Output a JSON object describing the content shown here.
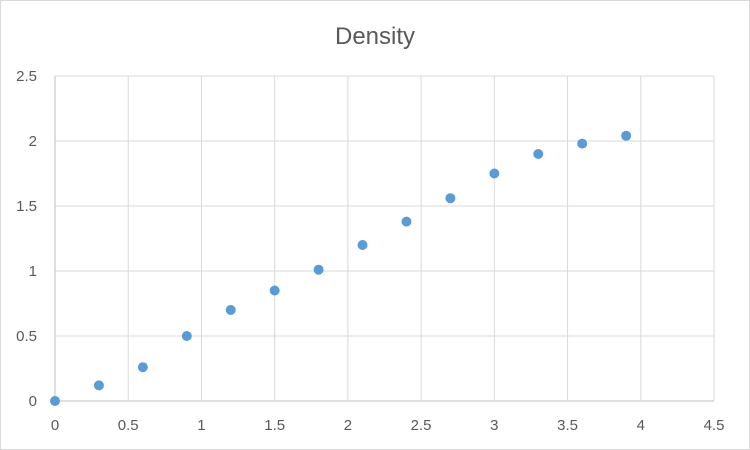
{
  "chart_data": {
    "type": "scatter",
    "title": "Density",
    "xlabel": "",
    "ylabel": "",
    "xlim": [
      0,
      4.5
    ],
    "ylim": [
      0,
      2.5
    ],
    "x_ticks": [
      "0",
      "0.5",
      "1",
      "1.5",
      "2",
      "2.5",
      "3",
      "3.5",
      "4",
      "4.5"
    ],
    "y_ticks": [
      "0",
      "0.5",
      "1",
      "1.5",
      "2",
      "2.5"
    ],
    "grid": true,
    "legend": "none",
    "marker_color": "#5b9bd5",
    "series": [
      {
        "x": [
          0,
          0.3,
          0.6,
          0.9,
          1.2,
          1.5,
          1.8,
          2.1,
          2.4,
          2.7,
          3.0,
          3.3,
          3.6,
          3.9
        ],
        "y": [
          0,
          0.12,
          0.26,
          0.5,
          0.7,
          0.85,
          1.01,
          1.2,
          1.38,
          1.56,
          1.75,
          1.9,
          1.98,
          2.04
        ]
      }
    ]
  }
}
